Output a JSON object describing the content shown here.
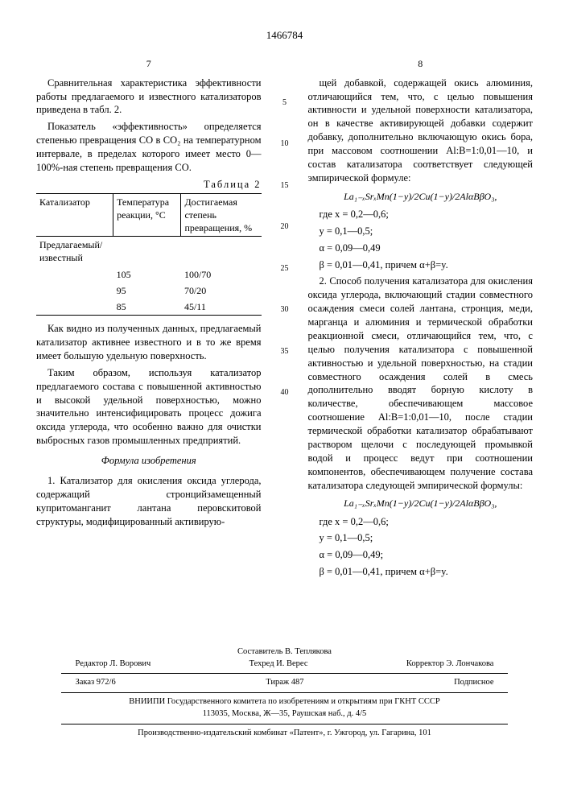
{
  "patent_number": "1466784",
  "left_col_num": "7",
  "right_col_num": "8",
  "left": {
    "p1": "Сравнительная характеристика эффективности работы предлагаемого и известного катализаторов приведена в табл. 2.",
    "p2": "Показатель «эффективность» определяется степенью превращения CO в CO₂ на температурном интервале, в пределах которого имеет место 0—100%-ная степень превращения CO.",
    "table_caption": "Таблица 2",
    "table": {
      "headers": [
        "Катализатор",
        "Температура реакции, °C",
        "Достигаемая степень превращения, %"
      ],
      "row_label": "Предлагаемый/ известный",
      "rows": [
        [
          "",
          "105",
          "100/70"
        ],
        [
          "",
          "95",
          "70/20"
        ],
        [
          "",
          "85",
          "45/11"
        ]
      ]
    },
    "p3": "Как видно из полученных данных, предлагаемый катализатор активнее известного и в то же время имеет большую удельную поверхность.",
    "p4": "Таким образом, используя катализатор предлагаемого состава с повышенной активностью и высокой удельной поверхностью, можно значительно интенсифицировать процесс дожига оксида углерода, что особенно важно для очистки выбросных газов промышленных предприятий.",
    "formula_title": "Формула изобретения",
    "p5": "1. Катализатор для окисления оксида углерода, содержащий стронцийзамещенный купритоманганит лантана перовскитовой структуры, модифицированный активирую-"
  },
  "right": {
    "p1": "щей добавкой, содержащей окись алюминия, отличающийся тем, что, с целью повышения активности и удельной поверхности катализатора, он в качестве активирующей добавки содержит добавку, дополнительно включающую окись бора, при массовом соотношении Al:B=1:0,01—10, и состав катализатора соответствует следующей эмпирической формуле:",
    "formula1": "La₁₋ₓSrₓMn(1−y)/2Cu(1−y)/2AlαBβO₃,",
    "where1_a": "где x = 0,2—0,6;",
    "where1_b": "y = 0,1—0,5;",
    "where1_c": "α = 0,09—0,49",
    "where1_d": "β = 0,01—0,41, причем α+β=y.",
    "p2": "2. Способ получения катализатора для окисления оксида углерода, включающий стадии совместного осаждения смеси солей лантана, стронция, меди, марганца и алюминия и термической обработки реакционной смеси, отличающийся тем, что, с целью получения катализатора с повышенной активностью и удельной поверхностью, на стадии совместного осаждения солей в смесь дополнительно вводят борную кислоту в количестве, обеспечивающем массовое соотношение Al:B=1:0,01—10, после стадии термической обработки катализатор обрабатывают раствором щелочи с последующей промывкой водой и процесс ведут при соотношении компонентов, обеспечивающем получение состава катализатора следующей эмпирической формулы:",
    "formula2": "La₁₋ₓSrₓMn(1−y)/2Cu(1−y)/2AlαBβO₃,",
    "where2_a": "где x = 0,2—0,6;",
    "where2_b": "y = 0,1—0,5;",
    "where2_c": "α = 0,09—0,49;",
    "where2_d": "β = 0,01—0,41, причем α+β=y."
  },
  "line_numbers": [
    "5",
    "10",
    "15",
    "20",
    "25",
    "30",
    "35",
    "40"
  ],
  "footer": {
    "compiler": "Составитель В. Теплякова",
    "editor": "Редактор Л. Ворович",
    "tech": "Техред И. Верес",
    "corrector": "Корректор Э. Лончакова",
    "order": "Заказ 972/6",
    "circulation": "Тираж 487",
    "subscription": "Подписное",
    "org1": "ВНИИПИ Государственного комитета по изобретениям и открытиям при ГКНТ СССР",
    "addr1": "113035, Москва, Ж—35, Раушская наб., д. 4/5",
    "org2": "Производственно-издательский комбинат «Патент», г. Ужгород, ул. Гагарина, 101"
  }
}
